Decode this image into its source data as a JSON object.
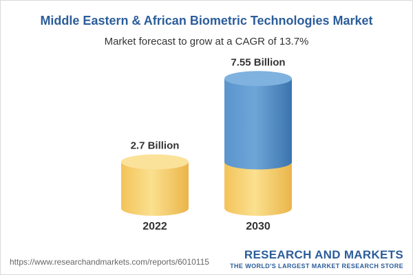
{
  "header": {
    "title": "Middle Eastern & African Biometric Technologies Market",
    "subtitle": "Market forecast to grow at a CAGR of 13.7%"
  },
  "chart_data": {
    "type": "bar",
    "categories": [
      "2022",
      "2030"
    ],
    "values": [
      2.7,
      7.55
    ],
    "value_labels": [
      "2.7 Billion",
      "7.55 Billion"
    ],
    "ylim": [
      0,
      8
    ],
    "grid": false,
    "legend": "none",
    "colors": {
      "base": "#f5c65a",
      "growth": "#4a86c0"
    }
  },
  "footer": {
    "source_url": "https://www.researchandmarkets.com/reports/6010115",
    "brand_name": "RESEARCH AND MARKETS",
    "brand_tagline": "THE WORLD'S LARGEST MARKET RESEARCH STORE"
  }
}
